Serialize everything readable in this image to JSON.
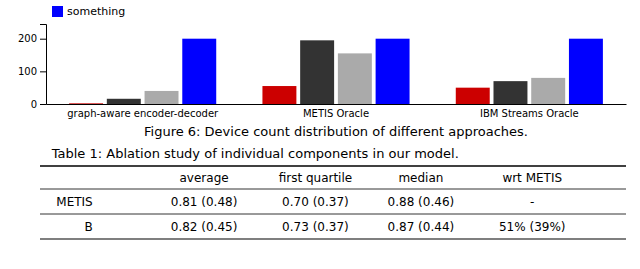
{
  "chart_data": {
    "type": "bar",
    "x_label": "Figure 6: Device count distribution of different approaches.",
    "categories": [
      "graph-aware encoder-decoder",
      "METIS Oracle",
      "IBM Streams Oracle"
    ],
    "series": [
      {
        "color": "#cc0000",
        "values": [
          2,
          55,
          50
        ]
      },
      {
        "color": "#333333",
        "values": [
          16,
          195,
          70
        ]
      },
      {
        "color": "#aaaaaa",
        "values": [
          40,
          155,
          80
        ]
      },
      {
        "name": "something",
        "color": "#0000ff",
        "values": [
          200,
          200,
          200
        ]
      }
    ],
    "ylim": [
      0,
      245
    ],
    "yticks": [
      0,
      100,
      200
    ],
    "legend": "upper left"
  },
  "table": {
    "title": "Table 1: Ablation study of individual components in our model.",
    "columns": [
      null,
      "average",
      "first quartile",
      "median",
      "wrt METIS"
    ],
    "rows": [
      [
        "METIS",
        "0.81 (0.48)",
        "0.70 (0.37)",
        "0.88 (0.46)",
        "-"
      ],
      [
        "B",
        "0.82 (0.45)",
        "0.73 (0.37)",
        "0.87 (0.44)",
        "51% (39%)"
      ]
    ]
  }
}
